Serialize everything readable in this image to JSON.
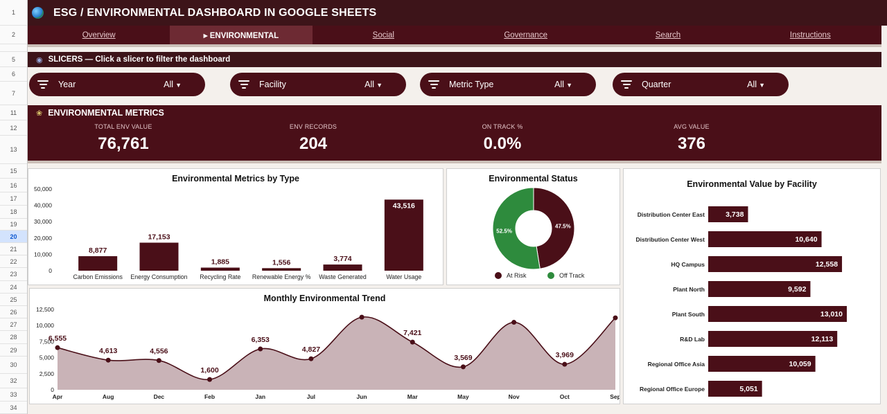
{
  "app": {
    "title": "ESG / ENVIRONMENTAL DASHBOARD IN GOOGLE SHEETS"
  },
  "row_headers": [
    "1",
    "2",
    "",
    "5",
    "6",
    "7",
    "11",
    "12",
    "13",
    "15",
    "16",
    "17",
    "18",
    "19",
    "20",
    "21",
    "22",
    "23",
    "24",
    "25",
    "26",
    "27",
    "28",
    "29",
    "30",
    "32",
    "33",
    "34"
  ],
  "nav": {
    "items": [
      {
        "label": "Overview"
      },
      {
        "label": "▸ ENVIRONMENTAL"
      },
      {
        "label": "Social"
      },
      {
        "label": "Governance"
      },
      {
        "label": "Search"
      },
      {
        "label": "Instructions"
      }
    ],
    "active_index": 1
  },
  "slicer_bar": {
    "label": "SLICERS — Click a slicer to filter the dashboard"
  },
  "slicers": [
    {
      "label": "Year",
      "value": "All"
    },
    {
      "label": "Facility",
      "value": "All"
    },
    {
      "label": "Metric Type",
      "value": "All"
    },
    {
      "label": "Quarter",
      "value": "All"
    }
  ],
  "metrics": {
    "title": "ENVIRONMENTAL METRICS",
    "kpis": [
      {
        "label": "TOTAL ENV VALUE",
        "value": "76,761"
      },
      {
        "label": "ENV RECORDS",
        "value": "204"
      },
      {
        "label": "ON TRACK %",
        "value": "0.0%"
      },
      {
        "label": "AVG VALUE",
        "value": "376"
      }
    ]
  },
  "colors": {
    "maroon": "#4a0f18",
    "dark_maroon": "#3d1419",
    "green": "#2e8b3d",
    "area_fill": "#c9b3b7"
  },
  "chart_data": [
    {
      "type": "bar",
      "title": "Environmental Metrics by Type",
      "categories": [
        "Carbon Emissions",
        "Energy Consumption",
        "Recycling Rate",
        "Renewable Energy %",
        "Waste Generated",
        "Water Usage"
      ],
      "values": [
        8877,
        17153,
        1885,
        1556,
        3774,
        43516
      ],
      "value_labels": [
        "8,877",
        "17,153",
        "1,885",
        "1,556",
        "3,774",
        "43,516"
      ],
      "ylim": [
        0,
        50000
      ],
      "yticks": [
        "50,000",
        "40,000",
        "30,000",
        "20,000",
        "10,000",
        "0"
      ]
    },
    {
      "type": "pie",
      "title": "Environmental Status",
      "labels": [
        "At Risk",
        "Off Track"
      ],
      "values": [
        47.5,
        52.5
      ],
      "value_labels": [
        "47.5%",
        "52.5%"
      ],
      "colors": [
        "#4a0f18",
        "#2e8b3d"
      ]
    },
    {
      "type": "bar",
      "title": "Environmental Value by Facility",
      "categories": [
        "Distribution Center East",
        "Distribution Center West",
        "HQ Campus",
        "Plant North",
        "Plant South",
        "R&D Lab",
        "Regional Office Asia",
        "Regional Office Europe"
      ],
      "values": [
        3738,
        10640,
        12558,
        9592,
        13010,
        12113,
        10059,
        5051
      ],
      "value_labels": [
        "3,738",
        "10,640",
        "12,558",
        "9,592",
        "13,010",
        "12,113",
        "10,059",
        "5,051"
      ],
      "orientation": "horizontal"
    },
    {
      "type": "area",
      "title": "Monthly Environmental Trend",
      "categories": [
        "Apr",
        "Aug",
        "Dec",
        "Feb",
        "Jan",
        "Jul",
        "Jun",
        "Mar",
        "May",
        "Nov",
        "Oct",
        "Sep"
      ],
      "values": [
        6555,
        4613,
        4556,
        1600,
        6353,
        4827,
        11300,
        7421,
        3569,
        10500,
        3969,
        11200
      ],
      "value_labels": [
        "6,555",
        "4,613",
        "4,556",
        "1,600",
        "6,353",
        "4,827",
        "",
        "7,421",
        "3,569",
        "",
        "3,969",
        ""
      ],
      "ylim": [
        0,
        12500
      ],
      "yticks": [
        "12,500",
        "10,000",
        "7,500",
        "5,000",
        "2,500",
        "0"
      ]
    }
  ]
}
